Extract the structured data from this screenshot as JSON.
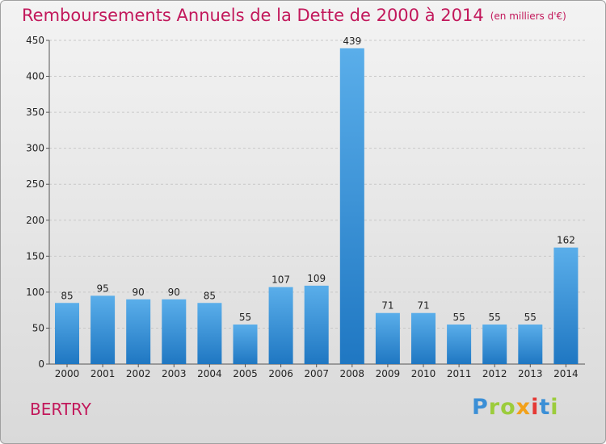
{
  "header": {
    "title": "Remboursements Annuels de la Dette de 2000 à 2014",
    "unit": "(en milliers d'€)"
  },
  "commune": "BERTRY",
  "logo": {
    "text": "Proxiti",
    "colors": [
      "#3b8fd6",
      "#9ccc3c",
      "#9ccc3c",
      "#f2a11a",
      "#e53935",
      "#3b8fd6",
      "#9ccc3c"
    ]
  },
  "colors": {
    "title": "#c2185b",
    "bar_light": "#5aaeea",
    "bar_dark": "#1f77c2",
    "grid": "#c8c8c8"
  },
  "chart_data": {
    "type": "bar",
    "title": "Remboursements Annuels de la Dette de 2000 à 2014",
    "xlabel": "",
    "ylabel": "",
    "categories": [
      "2000",
      "2001",
      "2002",
      "2003",
      "2004",
      "2005",
      "2006",
      "2007",
      "2008",
      "2009",
      "2010",
      "2011",
      "2012",
      "2013",
      "2014"
    ],
    "values": [
      85,
      95,
      90,
      90,
      85,
      55,
      107,
      109,
      439,
      71,
      71,
      55,
      55,
      55,
      162
    ],
    "ylim": [
      0,
      450
    ],
    "yticks": [
      0,
      50,
      100,
      150,
      200,
      250,
      300,
      350,
      400,
      450
    ],
    "grid": true,
    "legend": "none"
  }
}
